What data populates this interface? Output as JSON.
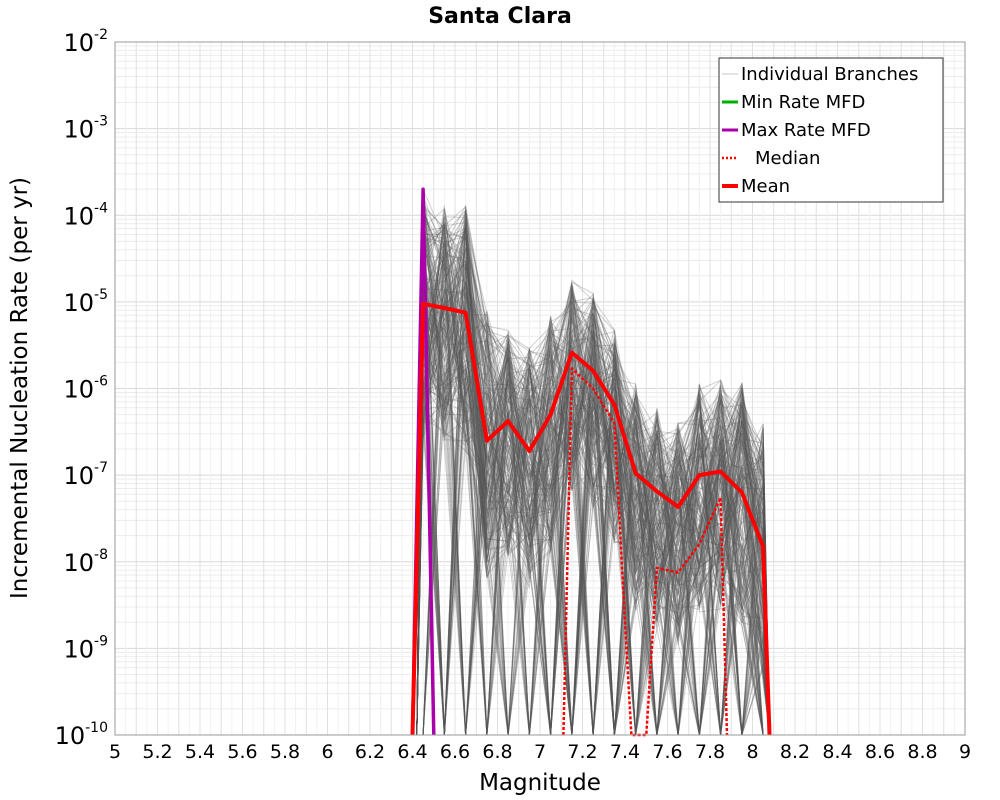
{
  "chart_data": {
    "type": "line",
    "title": "Santa Clara",
    "xlabel": "Magnitude",
    "ylabel": "Incremental Nucleation Rate (per yr)",
    "xlim": [
      5,
      9
    ],
    "ylim": [
      1e-10,
      0.01
    ],
    "yscale": "log",
    "grid": true,
    "legend_position": "top-right",
    "x_ticks": [
      "5",
      "5.2",
      "5.4",
      "5.6",
      "5.8",
      "6",
      "6.2",
      "6.4",
      "6.6",
      "6.8",
      "7",
      "7.2",
      "7.4",
      "7.6",
      "7.8",
      "8",
      "8.2",
      "8.4",
      "8.6",
      "8.8",
      "9"
    ],
    "y_ticks": [
      {
        "base": "10",
        "exp": "-2"
      },
      {
        "base": "10",
        "exp": "-3"
      },
      {
        "base": "10",
        "exp": "-4"
      },
      {
        "base": "10",
        "exp": "-5"
      },
      {
        "base": "10",
        "exp": "-6"
      },
      {
        "base": "10",
        "exp": "-7"
      },
      {
        "base": "10",
        "exp": "-8"
      },
      {
        "base": "10",
        "exp": "-9"
      },
      {
        "base": "10",
        "exp": "-10"
      }
    ],
    "legend": [
      {
        "name": "Individual Branches",
        "color": "#c8c8c8",
        "style": "thin"
      },
      {
        "name": "Min Rate MFD",
        "color": "#00b000",
        "style": "solid"
      },
      {
        "name": "Max Rate MFD",
        "color": "#aa00aa",
        "style": "solid"
      },
      {
        "name": "Median",
        "color": "#ff0000",
        "style": "dotted"
      },
      {
        "name": "Mean",
        "color": "#ff0000",
        "style": "thick"
      }
    ],
    "series": [
      {
        "name": "Mean",
        "color": "#ff0000",
        "x": [
          6.4,
          6.45,
          6.55,
          6.65,
          6.75,
          6.85,
          6.95,
          7.05,
          7.15,
          7.25,
          7.35,
          7.45,
          7.55,
          7.65,
          7.75,
          7.85,
          7.95,
          8.05,
          8.08
        ],
        "y": [
          1e-10,
          9.5e-06,
          8.5e-06,
          7.5e-06,
          2.5e-07,
          4.2e-07,
          1.9e-07,
          5e-07,
          2.6e-06,
          1.6e-06,
          6.5e-07,
          1.05e-07,
          6.5e-08,
          4.3e-08,
          1e-07,
          1.1e-07,
          6.3e-08,
          1.5e-08,
          1e-10
        ]
      },
      {
        "name": "Median",
        "color": "#ff0000",
        "x": [
          7.11,
          7.15,
          7.25,
          7.35,
          7.4,
          7.43,
          7.5,
          7.55,
          7.65,
          7.75,
          7.85,
          7.88
        ],
        "y": [
          1e-10,
          1.7e-06,
          1e-06,
          4e-07,
          2e-09,
          1e-10,
          1e-10,
          8.5e-09,
          7.5e-09,
          1.6e-08,
          5.5e-08,
          1e-10
        ]
      },
      {
        "name": "Max Rate MFD",
        "color": "#aa00aa",
        "x": [
          6.4,
          6.45,
          6.5
        ],
        "y": [
          1e-10,
          0.0002,
          1e-10
        ]
      },
      {
        "name": "Individual Branches",
        "color": "#555555",
        "x": [
          6.45,
          6.55,
          6.65,
          6.75,
          6.85,
          6.95,
          7.05,
          7.15,
          7.25,
          7.35,
          7.45,
          7.55,
          7.65,
          7.75,
          7.85,
          7.95,
          8.05
        ],
        "y_max": [
          0.0002,
          0.00013,
          0.00013,
          8e-06,
          5e-06,
          3e-06,
          7e-06,
          1.8e-05,
          1.3e-05,
          5e-06,
          1.2e-06,
          6e-07,
          4e-07,
          1.2e-06,
          1.3e-06,
          1.2e-06,
          4e-07
        ],
        "y_mid": [
          9.5e-06,
          8.5e-06,
          7.5e-06,
          2.5e-07,
          4.2e-07,
          1.9e-07,
          5e-07,
          2.6e-06,
          1.6e-06,
          6.5e-07,
          1.05e-07,
          6.5e-08,
          4.3e-08,
          1e-07,
          1.1e-07,
          6.3e-08,
          1.5e-08
        ]
      }
    ]
  }
}
